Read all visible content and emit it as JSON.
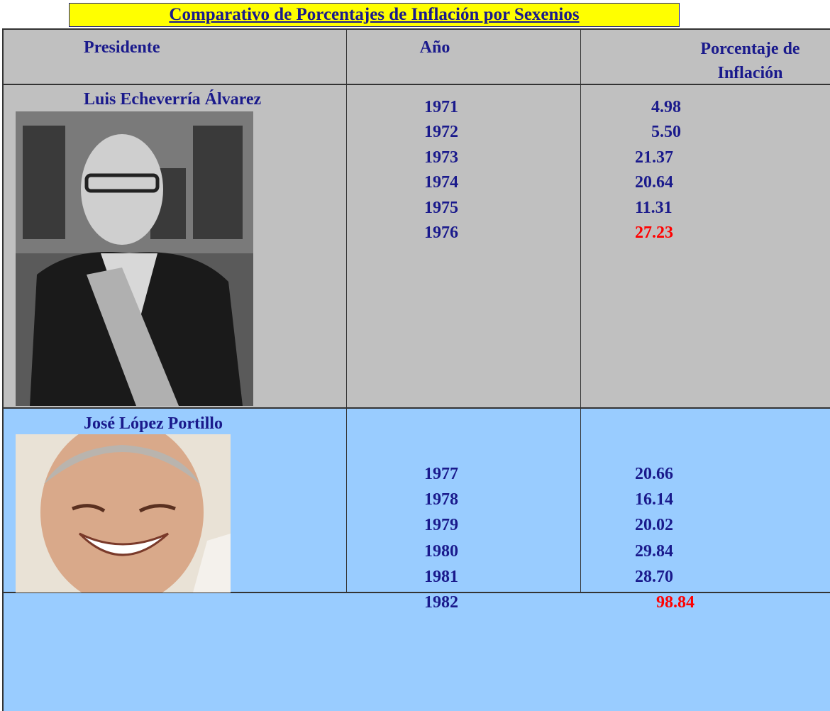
{
  "title": "Comparativo de Porcentajes de Inflación por Sexenios",
  "table": {
    "headers": [
      "Presidente",
      "Año",
      "Porcentaje de Inflación"
    ],
    "rows": [
      {
        "president": "Luis Echeverría Álvarez",
        "years": [
          "1971",
          "1972",
          "1973",
          "1974",
          "1975",
          "1976"
        ],
        "values": [
          "4.98",
          "5.50",
          "21.37",
          "20.64",
          "11.31",
          {
            "text": "27.23",
            "color": "#ff0000"
          }
        ]
      },
      {
        "president": "José López Portillo",
        "years": [
          "1977",
          "1978",
          "1979",
          "1980",
          "1981",
          "1982"
        ],
        "values": [
          "20.66",
          "16.14",
          "20.02",
          "29.84",
          "28.70",
          {
            "text": "98.84",
            "color": "#ff0000"
          }
        ]
      }
    ]
  }
}
